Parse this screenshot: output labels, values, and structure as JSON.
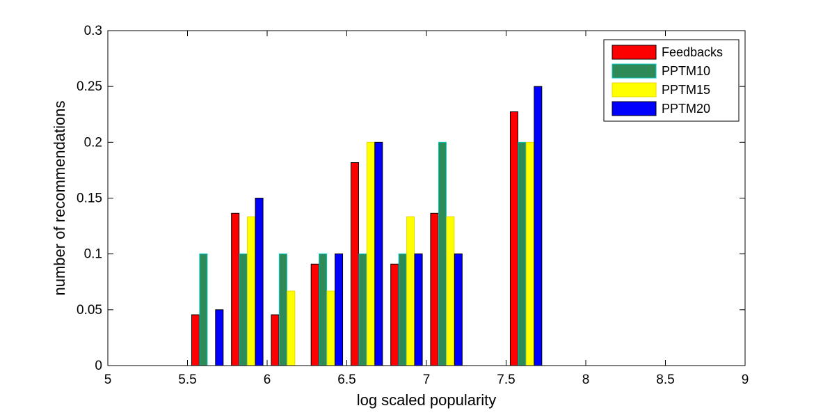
{
  "chart_data": {
    "type": "bar",
    "xlabel": "log scaled popularity",
    "ylabel": "number of recommendations",
    "xlim": [
      5,
      9
    ],
    "ylim": [
      0,
      0.3
    ],
    "xticks": [
      "5",
      "5.5",
      "6",
      "6.5",
      "7",
      "7.5",
      "8",
      "8.5",
      "9"
    ],
    "yticks": [
      "0",
      "0.05",
      "0.1",
      "0.15",
      "0.2",
      "0.25",
      "0.3"
    ],
    "grid": false,
    "legend_position": "top-right",
    "x": [
      5.125,
      5.375,
      5.625,
      5.875,
      6.125,
      6.375,
      6.625,
      6.875,
      7.125,
      7.375,
      7.625,
      7.875,
      8.125,
      8.375,
      8.625,
      8.875
    ],
    "series": [
      {
        "name": "Feedbacks",
        "color": "#ff0000",
        "edge": "#000000",
        "values": [
          0,
          0,
          0.0455,
          0.1364,
          0.0455,
          0.0909,
          0.1818,
          0.0909,
          0.1364,
          0,
          0.2273,
          0,
          0,
          0,
          0,
          0
        ]
      },
      {
        "name": "PPTM10",
        "color": "#2e8b57",
        "edge": "#00c8c8",
        "values": [
          0,
          0,
          0.1,
          0.1,
          0.1,
          0.1,
          0.1,
          0.1,
          0.2,
          0,
          0.2,
          0,
          0,
          0,
          0,
          0
        ]
      },
      {
        "name": "PPTM15",
        "color": "#ffff00",
        "edge": "#e8d800",
        "values": [
          0,
          0,
          0,
          0.1333,
          0.0667,
          0.0667,
          0.2,
          0.1333,
          0.1333,
          0,
          0.2,
          0,
          0,
          0,
          0,
          0
        ]
      },
      {
        "name": "PPTM20",
        "color": "#0000ff",
        "edge": "#000000",
        "values": [
          0,
          0,
          0.05,
          0.15,
          0,
          0.1,
          0.2,
          0.1,
          0.1,
          0,
          0.25,
          0,
          0,
          0,
          0,
          0
        ]
      }
    ]
  }
}
